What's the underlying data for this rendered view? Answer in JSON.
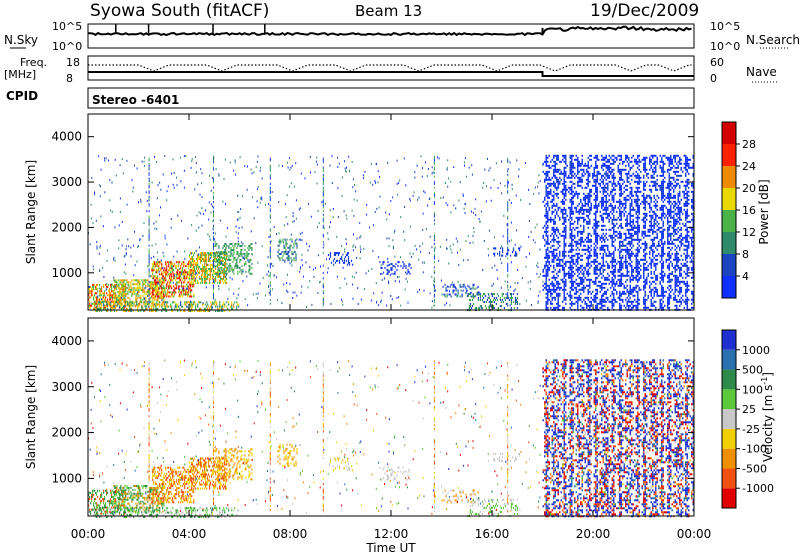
{
  "header": {
    "title": "Syowa South (fitACF)",
    "beam": "Beam 13",
    "date": "19/Dec/2009"
  },
  "nsky_panel": {
    "left_label": "N.Sky",
    "right_label": "N.Search",
    "left_ticks": [
      "10^5",
      "10^0"
    ],
    "right_ticks": [
      "10^5",
      "10^0"
    ]
  },
  "freq_panel": {
    "left_label": "Freq.",
    "left_unit": "[MHz]",
    "right_label": "Nave",
    "left_ticks": [
      "18",
      "8"
    ],
    "right_ticks": [
      "60",
      "0"
    ]
  },
  "cpid": {
    "label": "CPID",
    "value": "Stereo -6401"
  },
  "time_axis": {
    "label": "Time UT",
    "ticks": [
      "00:00",
      "04:00",
      "08:00",
      "12:00",
      "16:00",
      "20:00",
      "00:00"
    ]
  },
  "chart_data": [
    {
      "type": "heatmap",
      "panel": "power",
      "ylabel": "Slant Range [km]",
      "yticks": [
        1000,
        2000,
        3000,
        4000
      ],
      "ylim": [
        180,
        4500
      ],
      "xlim_hours": [
        0,
        24
      ],
      "colorbar": {
        "label": "Power [dB]",
        "tick_labels": [
          "4",
          "8",
          "12",
          "16",
          "20",
          "24",
          "28"
        ],
        "colors": [
          "#1030ff",
          "#1a44c0",
          "#2e8a6a",
          "#49b34a",
          "#e8d800",
          "#f08a00",
          "#ff2200",
          "#d40000"
        ]
      },
      "mode_note_hours": [
        18,
        24
      ]
    },
    {
      "type": "heatmap",
      "panel": "velocity",
      "ylabel": "Slant Range [km]",
      "yticks": [
        1000,
        2000,
        3000,
        4000
      ],
      "ylim": [
        180,
        4500
      ],
      "xlim_hours": [
        0,
        24
      ],
      "colorbar": {
        "label": "Velocity [m s^-1]",
        "tick_labels": [
          "1000",
          "500",
          "100",
          "25",
          "-25",
          "-100",
          "-500",
          "-1000"
        ],
        "colors": [
          "#2030d0",
          "#2a70b0",
          "#2e8a4a",
          "#5ac83a",
          "#c8c8c8",
          "#f0d000",
          "#f09000",
          "#f05010",
          "#e00000"
        ]
      }
    }
  ]
}
